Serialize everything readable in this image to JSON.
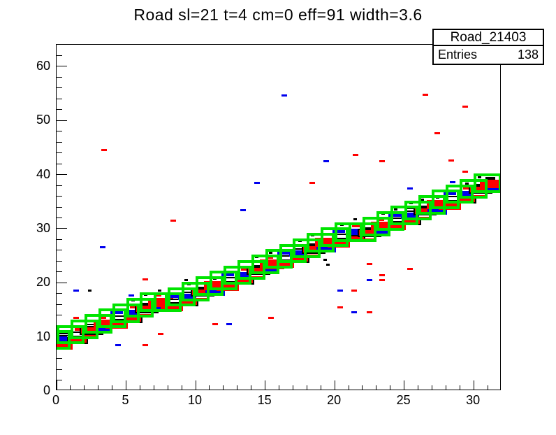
{
  "title": "Road sl=21 t=4 cm=0 eff=91 width=3.6",
  "stats": {
    "name": "Road_21403",
    "entries_label": "Entries",
    "entries_value": "138"
  },
  "colors": {
    "road_green": "#00e400",
    "hit_red": "#ff0000",
    "hit_blue": "#0000ee",
    "black": "#000000",
    "background": "#ffffff"
  },
  "chart_data": {
    "type": "heatmap",
    "style": "ROOT TH2 box-option histogram with road overlay",
    "title": "Road sl=21 t=4 cm=0 eff=91 width=3.6",
    "xlabel": "",
    "ylabel": "",
    "xlim": [
      0,
      32
    ],
    "ylim": [
      0,
      64
    ],
    "grid": false,
    "legend": false,
    "axes": {
      "x_major_ticks": [
        0,
        5,
        10,
        15,
        20,
        25,
        30
      ],
      "x_minor_step": 1,
      "y_major_ticks": [
        0,
        10,
        20,
        30,
        40,
        50,
        60
      ],
      "y_minor_step": 2
    },
    "road": {
      "box_w": 2.0,
      "box_h": 3.6,
      "centers": [
        [
          0,
          9.4
        ],
        [
          1,
          10.4
        ],
        [
          2,
          11.4
        ],
        [
          3,
          12.4
        ],
        [
          4,
          13.4
        ],
        [
          5,
          14.4
        ],
        [
          6,
          15.4
        ],
        [
          7,
          16.4
        ],
        [
          8,
          16.4
        ],
        [
          9,
          17.4
        ],
        [
          10,
          18.4
        ],
        [
          11,
          19.4
        ],
        [
          12,
          20.4
        ],
        [
          13,
          21.4
        ],
        [
          14,
          22.4
        ],
        [
          15,
          23.4
        ],
        [
          16,
          24.4
        ],
        [
          17,
          25.4
        ],
        [
          18,
          26.4
        ],
        [
          19,
          27.4
        ],
        [
          20,
          28.4
        ],
        [
          21,
          29.4
        ],
        [
          22,
          29.4
        ],
        [
          23,
          30.4
        ],
        [
          24,
          31.4
        ],
        [
          25,
          32.4
        ],
        [
          26,
          33.4
        ],
        [
          27,
          34.4
        ],
        [
          28,
          35.4
        ],
        [
          29,
          36.4
        ],
        [
          30,
          37.4
        ],
        [
          31,
          38.4
        ]
      ]
    },
    "hits": [
      [
        0.3,
        8.4,
        1.7,
        1.5,
        "red"
      ],
      [
        0.3,
        9.6,
        0.9,
        0.9,
        "blue"
      ],
      [
        0.5,
        10.4,
        0.8,
        0.7,
        "open"
      ],
      [
        1.5,
        9.3,
        1.5,
        1.3,
        "redo"
      ],
      [
        1.5,
        10.5,
        1.2,
        1.0,
        "open"
      ],
      [
        1.6,
        11.4,
        0.6,
        0.6,
        "red"
      ],
      [
        2.5,
        11.2,
        1.7,
        1.6,
        "redo"
      ],
      [
        2.4,
        10.0,
        0.8,
        0.7,
        "red"
      ],
      [
        2.5,
        12.5,
        0.9,
        0.8,
        "open"
      ],
      [
        3.5,
        11.2,
        1.0,
        0.9,
        "blue"
      ],
      [
        3.5,
        12.4,
        1.7,
        1.6,
        "red"
      ],
      [
        3.3,
        13.6,
        0.5,
        0.5,
        "red"
      ],
      [
        4.3,
        12.3,
        1.6,
        1.5,
        "red"
      ],
      [
        4.4,
        13.5,
        1.1,
        1.0,
        "open"
      ],
      [
        4.3,
        14.6,
        0.9,
        0.8,
        "blue"
      ],
      [
        5.5,
        13.2,
        1.4,
        1.2,
        "redo"
      ],
      [
        5.4,
        14.4,
        1.2,
        1.1,
        "blue"
      ],
      [
        5.6,
        15.5,
        0.7,
        0.6,
        "red"
      ],
      [
        6.5,
        15.2,
        1.7,
        1.6,
        "redo"
      ],
      [
        6.4,
        13.9,
        0.8,
        0.7,
        "red"
      ],
      [
        6.5,
        16.5,
        1.0,
        0.9,
        "open"
      ],
      [
        7.5,
        15.2,
        1.0,
        0.9,
        "blue"
      ],
      [
        7.5,
        16.4,
        1.8,
        1.7,
        "red"
      ],
      [
        7.3,
        17.7,
        0.5,
        0.5,
        "red"
      ],
      [
        8.3,
        15.4,
        1.6,
        1.4,
        "red"
      ],
      [
        8.4,
        16.6,
        1.1,
        1.0,
        "open"
      ],
      [
        8.3,
        17.6,
        0.9,
        0.8,
        "blue"
      ],
      [
        9.5,
        16.2,
        1.4,
        1.2,
        "redo"
      ],
      [
        9.4,
        17.4,
        1.3,
        1.2,
        "blue"
      ],
      [
        9.4,
        18.5,
        0.8,
        0.7,
        "open"
      ],
      [
        10.5,
        18.2,
        1.7,
        1.6,
        "redo"
      ],
      [
        10.4,
        16.9,
        0.8,
        0.7,
        "red"
      ],
      [
        10.5,
        19.5,
        1.0,
        0.9,
        "open"
      ],
      [
        11.4,
        18.2,
        1.4,
        1.3,
        "blue"
      ],
      [
        11.5,
        19.5,
        1.8,
        1.7,
        "red"
      ],
      [
        12.3,
        19.3,
        1.6,
        1.5,
        "red"
      ],
      [
        12.4,
        20.6,
        1.1,
        1.0,
        "open"
      ],
      [
        12.3,
        21.6,
        0.9,
        0.8,
        "blue"
      ],
      [
        13.5,
        20.2,
        1.4,
        1.2,
        "redo"
      ],
      [
        13.4,
        21.4,
        1.2,
        1.1,
        "blue"
      ],
      [
        13.6,
        22.5,
        0.7,
        0.6,
        "red"
      ],
      [
        14.5,
        22.2,
        1.7,
        1.6,
        "redo"
      ],
      [
        14.4,
        20.9,
        0.8,
        0.7,
        "red"
      ],
      [
        14.5,
        23.5,
        1.0,
        0.9,
        "open"
      ],
      [
        15.5,
        22.2,
        1.0,
        0.9,
        "blue"
      ],
      [
        15.5,
        23.4,
        1.8,
        1.7,
        "red"
      ],
      [
        15.3,
        24.7,
        0.5,
        0.5,
        "red"
      ],
      [
        16.3,
        23.4,
        1.6,
        1.4,
        "red"
      ],
      [
        16.4,
        24.6,
        1.1,
        1.0,
        "open"
      ],
      [
        16.3,
        25.6,
        0.9,
        0.8,
        "blue"
      ],
      [
        17.5,
        24.2,
        1.4,
        1.2,
        "redo"
      ],
      [
        17.4,
        25.4,
        1.3,
        1.2,
        "blue"
      ],
      [
        17.4,
        26.5,
        0.8,
        0.7,
        "open"
      ],
      [
        18.5,
        26.2,
        1.7,
        1.6,
        "redo"
      ],
      [
        18.4,
        24.9,
        0.8,
        0.7,
        "red"
      ],
      [
        18.5,
        27.5,
        1.0,
        0.9,
        "open"
      ],
      [
        19.4,
        26.2,
        1.4,
        1.3,
        "blue"
      ],
      [
        19.5,
        27.5,
        1.8,
        1.7,
        "red"
      ],
      [
        20.3,
        27.3,
        1.6,
        1.5,
        "red"
      ],
      [
        20.4,
        28.6,
        1.1,
        1.0,
        "open"
      ],
      [
        20.3,
        29.6,
        0.9,
        0.8,
        "blue"
      ],
      [
        21.5,
        28.2,
        1.4,
        1.2,
        "redo"
      ],
      [
        21.4,
        29.4,
        1.2,
        1.1,
        "blue"
      ],
      [
        21.6,
        30.5,
        0.7,
        0.6,
        "red"
      ],
      [
        22.5,
        29.2,
        1.7,
        1.6,
        "redo"
      ],
      [
        22.4,
        27.9,
        0.8,
        0.7,
        "red"
      ],
      [
        22.5,
        30.5,
        1.0,
        0.9,
        "open"
      ],
      [
        23.5,
        29.2,
        1.0,
        0.9,
        "blue"
      ],
      [
        23.5,
        30.4,
        1.8,
        1.7,
        "red"
      ],
      [
        23.3,
        31.7,
        0.5,
        0.5,
        "red"
      ],
      [
        24.3,
        30.4,
        1.6,
        1.4,
        "red"
      ],
      [
        24.4,
        31.6,
        1.1,
        1.0,
        "open"
      ],
      [
        24.3,
        32.6,
        0.9,
        0.8,
        "blue"
      ],
      [
        25.5,
        31.2,
        1.4,
        1.2,
        "redo"
      ],
      [
        25.4,
        32.4,
        1.3,
        1.2,
        "blue"
      ],
      [
        25.4,
        33.5,
        0.8,
        0.7,
        "open"
      ],
      [
        26.5,
        33.2,
        1.7,
        1.6,
        "redo"
      ],
      [
        26.4,
        31.9,
        0.8,
        0.7,
        "red"
      ],
      [
        26.5,
        34.5,
        1.0,
        0.9,
        "open"
      ],
      [
        27.4,
        33.2,
        1.4,
        1.3,
        "blue"
      ],
      [
        27.5,
        34.5,
        1.8,
        1.7,
        "red"
      ],
      [
        28.3,
        34.3,
        1.6,
        1.5,
        "red"
      ],
      [
        28.4,
        35.6,
        1.1,
        1.0,
        "open"
      ],
      [
        28.3,
        36.6,
        0.9,
        0.8,
        "blue"
      ],
      [
        29.5,
        35.2,
        1.4,
        1.2,
        "redo"
      ],
      [
        29.4,
        36.4,
        1.2,
        1.1,
        "blue"
      ],
      [
        29.6,
        37.5,
        0.7,
        0.6,
        "red"
      ],
      [
        30.5,
        37.2,
        1.7,
        1.6,
        "redo"
      ],
      [
        30.4,
        35.9,
        0.8,
        0.7,
        "red"
      ],
      [
        30.5,
        38.5,
        1.0,
        0.9,
        "open"
      ],
      [
        31.3,
        37.2,
        1.0,
        0.9,
        "blue"
      ],
      [
        31.3,
        38.3,
        1.7,
        1.5,
        "red"
      ],
      [
        31.2,
        39.3,
        0.7,
        0.6,
        "open"
      ]
    ],
    "black_dots": [
      [
        2.5,
        13.9
      ],
      [
        4.5,
        15.8
      ],
      [
        6.4,
        17.8
      ],
      [
        9.5,
        19.7
      ],
      [
        11.4,
        20.8
      ],
      [
        12.5,
        22.8
      ],
      [
        14.4,
        24.8
      ],
      [
        16.5,
        26.8
      ],
      [
        18.4,
        28.8
      ],
      [
        21.5,
        31.7
      ],
      [
        23.5,
        32.8
      ],
      [
        25.5,
        34.7
      ],
      [
        27.4,
        35.8
      ],
      [
        28.5,
        37.8
      ],
      [
        30.4,
        39.5
      ],
      [
        2.4,
        18.6
      ],
      [
        7.4,
        18.6
      ],
      [
        9.3,
        20.5
      ],
      [
        13.4,
        24.0
      ],
      [
        17.5,
        27.7
      ],
      [
        20.5,
        30.7
      ],
      [
        24.4,
        33.6
      ],
      [
        26.3,
        35.4
      ],
      [
        29.5,
        38.4
      ],
      [
        19.3,
        24.3
      ],
      [
        19.5,
        23.3
      ],
      [
        5.5,
        16.8
      ],
      [
        8.5,
        18.9
      ],
      [
        15.4,
        25.6
      ],
      [
        22.4,
        32.0
      ]
    ],
    "noise": [
      [
        3.4,
        44.5,
        "red"
      ],
      [
        8.4,
        31.5,
        "red"
      ],
      [
        26.5,
        54.7,
        "red"
      ],
      [
        29.4,
        52.6,
        "red"
      ],
      [
        27.4,
        47.6,
        "red"
      ],
      [
        21.5,
        43.6,
        "red"
      ],
      [
        23.4,
        42.5,
        "red"
      ],
      [
        28.4,
        42.6,
        "red"
      ],
      [
        29.4,
        40.5,
        "red"
      ],
      [
        18.4,
        38.5,
        "red"
      ],
      [
        6.4,
        20.6,
        "red"
      ],
      [
        1.4,
        13.5,
        "red"
      ],
      [
        15.4,
        13.5,
        "red"
      ],
      [
        7.5,
        10.5,
        "red"
      ],
      [
        6.4,
        8.5,
        "red"
      ],
      [
        11.4,
        12.4,
        "red"
      ],
      [
        22.5,
        23.5,
        "red"
      ],
      [
        25.4,
        22.6,
        "red"
      ],
      [
        23.4,
        21.4,
        "red"
      ],
      [
        23.4,
        20.5,
        "red"
      ],
      [
        21.4,
        18.5,
        "red"
      ],
      [
        20.4,
        15.5,
        "red"
      ],
      [
        22.5,
        14.5,
        "red"
      ],
      [
        14.4,
        38.5,
        "blue"
      ],
      [
        13.4,
        33.4,
        "blue"
      ],
      [
        16.4,
        54.6,
        "blue"
      ],
      [
        19.4,
        42.5,
        "blue"
      ],
      [
        28.5,
        38.6,
        "blue"
      ],
      [
        25.4,
        37.4,
        "blue"
      ],
      [
        3.3,
        26.6,
        "blue"
      ],
      [
        1.4,
        18.5,
        "blue"
      ],
      [
        5.4,
        17.6,
        "blue"
      ],
      [
        12.4,
        12.4,
        "blue"
      ],
      [
        4.4,
        8.5,
        "blue"
      ],
      [
        20.4,
        18.5,
        "blue"
      ],
      [
        22.5,
        20.5,
        "blue"
      ],
      [
        21.4,
        14.5,
        "blue"
      ]
    ]
  }
}
